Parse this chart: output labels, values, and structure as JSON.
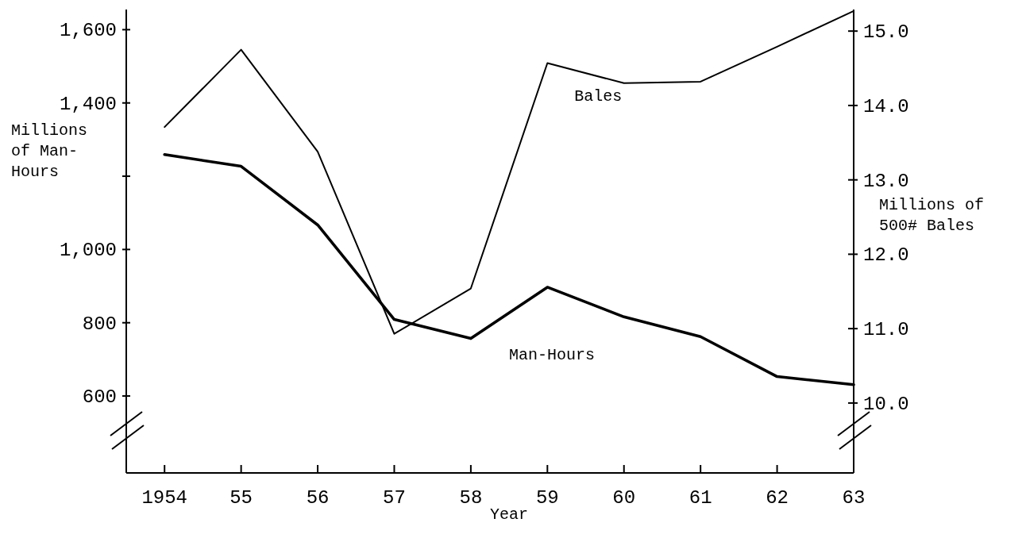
{
  "chart_data": {
    "type": "line",
    "xlabel": "Year",
    "ylabel": "Millions of Man-Hours",
    "y2label": "Millions of 500# Bales",
    "x": [
      1954,
      1955,
      1956,
      1957,
      1958,
      1959,
      1960,
      1961,
      1962,
      1963
    ],
    "xlim": [
      1953.5,
      1963
    ],
    "xticks": [
      1954,
      {
        "value": 1955,
        "label": "55"
      },
      {
        "value": 1956,
        "label": "56"
      },
      {
        "value": 1957,
        "label": "57"
      },
      {
        "value": 1958,
        "label": "58"
      },
      {
        "value": 1959,
        "label": "59"
      },
      {
        "value": 1960,
        "label": "60"
      },
      {
        "value": 1961,
        "label": "61"
      },
      {
        "value": 1962,
        "label": "62"
      },
      {
        "value": 1963,
        "label": "63"
      }
    ],
    "ylim": [
      390,
      1655
    ],
    "yticks": [
      {
        "value": 600,
        "label": "600"
      },
      {
        "value": 800,
        "label": "800"
      },
      {
        "value": 1000,
        "label": "1,000"
      },
      {
        "value": 1200,
        "label": null
      },
      {
        "value": 1400,
        "label": "1,400"
      },
      {
        "value": 1600,
        "label": "1,600"
      }
    ],
    "y2lim": [
      9.06,
      15.29
    ],
    "y2ticks": [
      {
        "value": 10,
        "label": "10.0"
      },
      {
        "value": 11,
        "label": "11.0"
      },
      {
        "value": 12,
        "label": "12.0"
      },
      {
        "value": 13,
        "label": "13.0"
      },
      {
        "value": 14,
        "label": "14.0"
      },
      {
        "value": 15,
        "label": "15.0"
      }
    ],
    "series": [
      {
        "name": "Bales",
        "color": "#000000",
        "axis": "y2",
        "values": [
          13.71,
          14.75,
          13.38,
          10.93,
          11.54,
          14.57,
          14.3,
          14.32,
          14.79,
          15.27
        ]
      },
      {
        "name": "Man-Hours",
        "color": "#000000",
        "values": [
          1259,
          1227,
          1067,
          809,
          757,
          897,
          816,
          762,
          653,
          631
        ]
      }
    ]
  }
}
